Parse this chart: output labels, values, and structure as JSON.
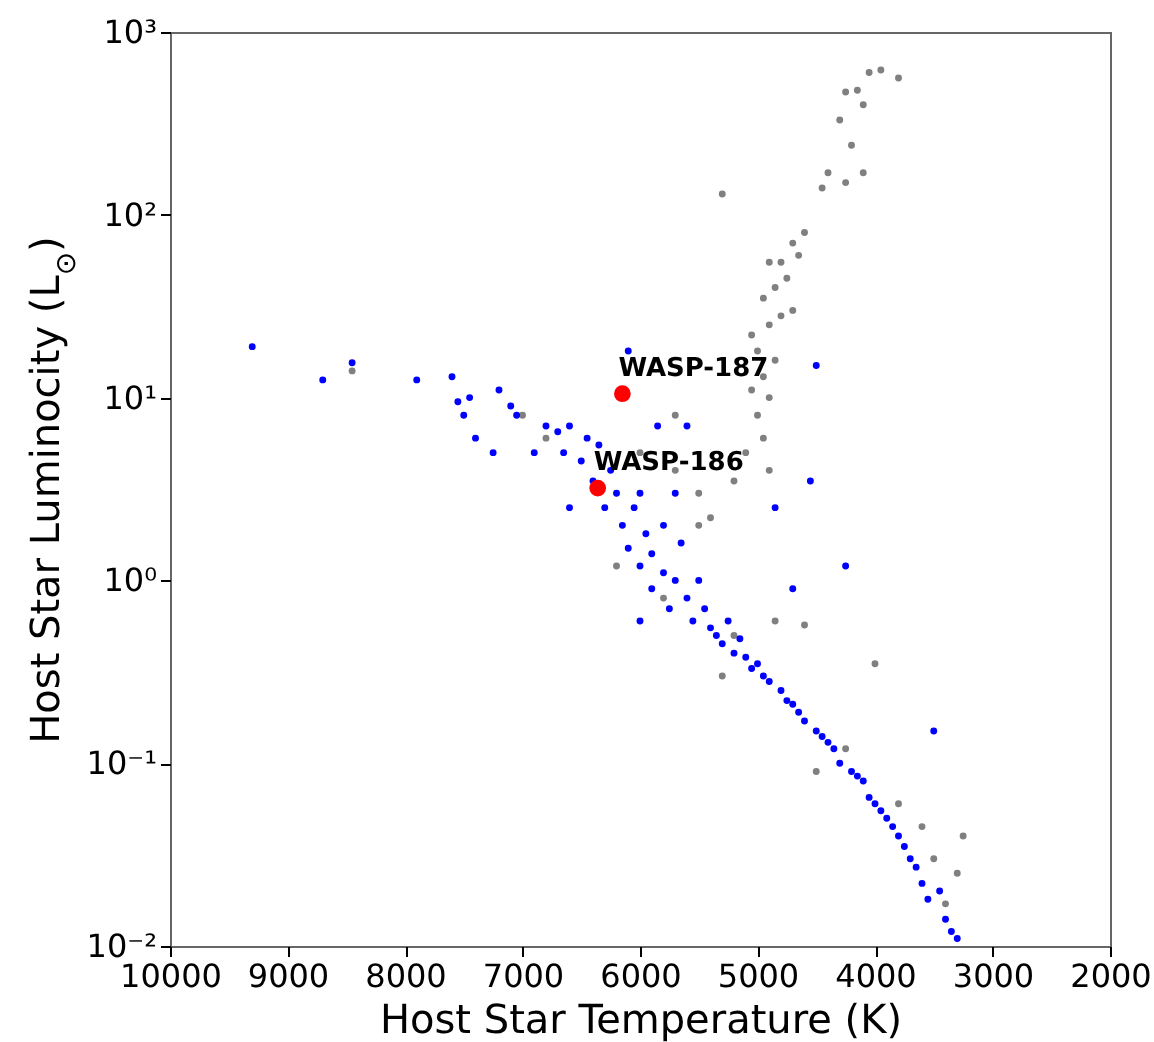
{
  "chart_data": {
    "type": "scatter",
    "xlabel": "Host Star Temperature (K)",
    "ylabel": "Host Star Luminocity (L$_{⊙}$)",
    "log": "y",
    "grid": false,
    "marker": "circle",
    "xlim": [
      10000,
      2000
    ],
    "xticks": [
      10000,
      9000,
      8000,
      7000,
      6000,
      5000,
      4000,
      3000,
      2000
    ],
    "ylim": [
      0.01,
      1000
    ],
    "yticks": [
      {
        "value": 0.01,
        "label": "10⁻²"
      },
      {
        "value": 0.1,
        "label": "10⁻¹"
      },
      {
        "value": 1,
        "label": "10⁰"
      },
      {
        "value": 10,
        "label": "10¹"
      },
      {
        "value": 100,
        "label": "10²"
      },
      {
        "value": 1000,
        "label": "10³"
      }
    ],
    "series": [
      {
        "type": "scatter",
        "color": "#808080",
        "x": [
          4050,
          3950,
          3800,
          4150,
          4250,
          4100,
          4300,
          4200,
          4400,
          4100,
          4250,
          4450,
          5300,
          4600,
          4700,
          4650,
          4800,
          4900,
          4750,
          4850,
          4950,
          4700,
          4800,
          4900,
          5050,
          5000,
          4850,
          4950,
          5050,
          4900,
          5000,
          4950,
          5100,
          4900,
          5200,
          5500,
          5700,
          8450,
          7000,
          6800,
          5400,
          6200,
          5800,
          5300,
          5200,
          4600,
          4000,
          4500,
          3800,
          3500,
          3300,
          3250,
          3400,
          4250,
          5700,
          6000,
          5500,
          4850,
          3600
        ],
        "values": [
          600,
          620,
          560,
          480,
          470,
          400,
          330,
          240,
          170,
          170,
          150,
          140,
          130,
          80,
          70,
          60,
          55,
          55,
          45,
          40,
          35,
          30,
          28,
          25,
          22,
          18,
          16,
          13,
          11,
          10,
          8,
          6,
          5,
          4,
          3.5,
          3,
          4,
          14,
          8,
          6,
          2.2,
          1.2,
          0.8,
          0.3,
          0.5,
          0.57,
          0.35,
          0.09,
          0.06,
          0.03,
          0.025,
          0.04,
          0.017,
          0.12,
          8,
          5,
          2,
          0.6,
          0.045
        ]
      },
      {
        "type": "scatter",
        "color": "#0000ff",
        "x": [
          9300,
          8700,
          8450,
          7900,
          7600,
          7550,
          7500,
          7450,
          7400,
          7250,
          7200,
          7100,
          7050,
          6900,
          6800,
          6700,
          6650,
          6600,
          6500,
          6450,
          6400,
          6350,
          6300,
          6250,
          6200,
          6150,
          6100,
          6100,
          6050,
          6000,
          6000,
          5950,
          5900,
          5900,
          5850,
          5800,
          5800,
          5750,
          5700,
          5650,
          5600,
          5550,
          5500,
          5450,
          5400,
          5350,
          5300,
          5250,
          5200,
          5150,
          5100,
          5050,
          5000,
          4950,
          4900,
          4850,
          4800,
          4750,
          4700,
          4650,
          4600,
          4550,
          4500,
          4450,
          4400,
          4350,
          4300,
          4250,
          4200,
          4150,
          4100,
          4050,
          4000,
          3950,
          3900,
          3850,
          3800,
          3750,
          3700,
          3650,
          3600,
          3550,
          3500,
          3450,
          3400,
          3350,
          3300,
          4500,
          5600,
          5700,
          6600,
          6000,
          4700
        ],
        "values": [
          19,
          12.5,
          15.5,
          12.5,
          13,
          9.5,
          8,
          10,
          6,
          5,
          11,
          9,
          8,
          5,
          7,
          6.5,
          5,
          7,
          4.5,
          6,
          3.5,
          5.5,
          2.5,
          4,
          3,
          2,
          18,
          1.5,
          2.5,
          1.2,
          3,
          1.8,
          0.9,
          1.4,
          7,
          1.1,
          2,
          0.7,
          1.0,
          1.6,
          0.8,
          0.6,
          1.0,
          0.7,
          0.55,
          0.5,
          0.45,
          0.6,
          0.4,
          0.48,
          0.38,
          0.33,
          0.35,
          0.3,
          0.28,
          2.5,
          0.25,
          0.22,
          0.21,
          0.19,
          0.17,
          3.5,
          0.15,
          0.14,
          0.13,
          0.12,
          0.1,
          1.2,
          0.09,
          0.085,
          0.08,
          0.065,
          0.06,
          0.055,
          0.05,
          0.045,
          0.04,
          0.035,
          0.03,
          0.027,
          0.022,
          0.018,
          0.15,
          0.02,
          0.014,
          0.012,
          0.011,
          15,
          7,
          3,
          2.5,
          0.6,
          0.9
        ]
      },
      {
        "type": "scatter",
        "color": "#ff0000",
        "x": [
          6150,
          6360
        ],
        "values": [
          10.5,
          3.2
        ]
      }
    ],
    "annotations": [
      {
        "text": "WASP-187",
        "x": 6150,
        "y": 10.5
      },
      {
        "text": "WASP-186",
        "x": 6360,
        "y": 3.2
      }
    ]
  }
}
